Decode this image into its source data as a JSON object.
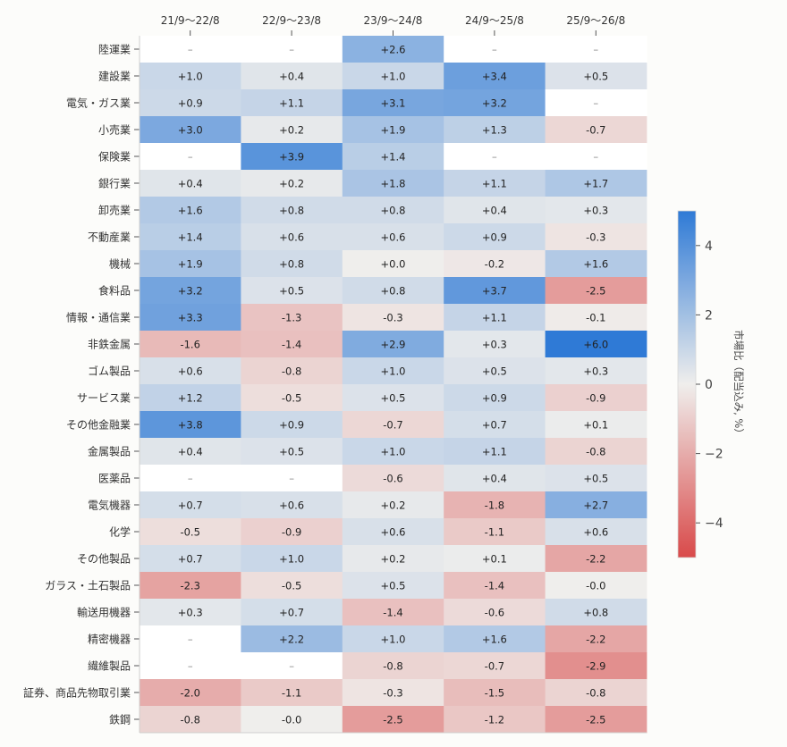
{
  "chart_data": {
    "type": "heatmap",
    "columns": [
      "21/9〜22/8",
      "22/9〜23/8",
      "23/9〜24/8",
      "24/9〜25/8",
      "25/9〜26/8"
    ],
    "rows": [
      "陸運業",
      "建設業",
      "電気・ガス業",
      "小売業",
      "保険業",
      "銀行業",
      "卸売業",
      "不動産業",
      "機械",
      "食料品",
      "情報・通信業",
      "非鉄金属",
      "ゴム製品",
      "サービス業",
      "その他金融業",
      "金属製品",
      "医薬品",
      "電気機器",
      "化学",
      "その他製品",
      "ガラス・土石製品",
      "輸送用機器",
      "精密機器",
      "繊維製品",
      "証券、商品先物取引業",
      "鉄鋼"
    ],
    "values": [
      [
        null,
        null,
        2.6,
        null,
        null
      ],
      [
        1.0,
        0.4,
        1.0,
        3.4,
        0.5
      ],
      [
        0.9,
        1.1,
        3.1,
        3.2,
        null
      ],
      [
        3.0,
        0.2,
        1.9,
        1.3,
        -0.7
      ],
      [
        null,
        3.9,
        1.4,
        null,
        null
      ],
      [
        0.4,
        0.2,
        1.8,
        1.1,
        1.7
      ],
      [
        1.6,
        0.8,
        0.8,
        0.4,
        0.3
      ],
      [
        1.4,
        0.6,
        0.6,
        0.9,
        -0.3
      ],
      [
        1.9,
        0.8,
        0.0,
        -0.2,
        1.6
      ],
      [
        3.2,
        0.5,
        0.8,
        3.7,
        -2.5
      ],
      [
        3.3,
        -1.3,
        -0.3,
        1.1,
        -0.1
      ],
      [
        -1.6,
        -1.4,
        2.9,
        0.3,
        6.0
      ],
      [
        0.6,
        -0.8,
        1.0,
        0.5,
        0.3
      ],
      [
        1.2,
        -0.5,
        0.5,
        0.9,
        -0.9
      ],
      [
        3.8,
        0.9,
        -0.7,
        0.7,
        0.1
      ],
      [
        0.4,
        0.5,
        1.0,
        1.1,
        -0.8
      ],
      [
        null,
        null,
        -0.6,
        0.4,
        0.5
      ],
      [
        0.7,
        0.6,
        0.2,
        -1.8,
        2.7
      ],
      [
        -0.5,
        -0.9,
        0.6,
        -1.1,
        0.6
      ],
      [
        0.7,
        1.0,
        0.2,
        0.1,
        -2.2
      ],
      [
        -2.3,
        -0.5,
        0.5,
        -1.4,
        -0.0
      ],
      [
        0.3,
        0.7,
        -1.4,
        -0.6,
        0.8
      ],
      [
        null,
        2.2,
        1.0,
        1.6,
        -2.2
      ],
      [
        null,
        null,
        -0.8,
        -0.7,
        -2.9
      ],
      [
        -2.0,
        -1.1,
        -0.3,
        -1.5,
        -0.8
      ],
      [
        -0.8,
        -0.0,
        -2.5,
        -1.2,
        -2.5
      ]
    ],
    "labels": [
      [
        "–",
        "–",
        "+2.6",
        "–",
        "–"
      ],
      [
        "+1.0",
        "+0.4",
        "+1.0",
        "+3.4",
        "+0.5"
      ],
      [
        "+0.9",
        "+1.1",
        "+3.1",
        "+3.2",
        "–"
      ],
      [
        "+3.0",
        "+0.2",
        "+1.9",
        "+1.3",
        "-0.7"
      ],
      [
        "–",
        "+3.9",
        "+1.4",
        "–",
        "–"
      ],
      [
        "+0.4",
        "+0.2",
        "+1.8",
        "+1.1",
        "+1.7"
      ],
      [
        "+1.6",
        "+0.8",
        "+0.8",
        "+0.4",
        "+0.3"
      ],
      [
        "+1.4",
        "+0.6",
        "+0.6",
        "+0.9",
        "-0.3"
      ],
      [
        "+1.9",
        "+0.8",
        "+0.0",
        "-0.2",
        "+1.6"
      ],
      [
        "+3.2",
        "+0.5",
        "+0.8",
        "+3.7",
        "-2.5"
      ],
      [
        "+3.3",
        "-1.3",
        "-0.3",
        "+1.1",
        "-0.1"
      ],
      [
        "-1.6",
        "-1.4",
        "+2.9",
        "+0.3",
        "+6.0"
      ],
      [
        "+0.6",
        "-0.8",
        "+1.0",
        "+0.5",
        "+0.3"
      ],
      [
        "+1.2",
        "-0.5",
        "+0.5",
        "+0.9",
        "-0.9"
      ],
      [
        "+3.8",
        "+0.9",
        "-0.7",
        "+0.7",
        "+0.1"
      ],
      [
        "+0.4",
        "+0.5",
        "+1.0",
        "+1.1",
        "-0.8"
      ],
      [
        "–",
        "–",
        "-0.6",
        "+0.4",
        "+0.5"
      ],
      [
        "+0.7",
        "+0.6",
        "+0.2",
        "-1.8",
        "+2.7"
      ],
      [
        "-0.5",
        "-0.9",
        "+0.6",
        "-1.1",
        "+0.6"
      ],
      [
        "+0.7",
        "+1.0",
        "+0.2",
        "+0.1",
        "-2.2"
      ],
      [
        "-2.3",
        "-0.5",
        "+0.5",
        "-1.4",
        "-0.0"
      ],
      [
        "+0.3",
        "+0.7",
        "-1.4",
        "-0.6",
        "+0.8"
      ],
      [
        "–",
        "+2.2",
        "+1.0",
        "+1.6",
        "-2.2"
      ],
      [
        "–",
        "–",
        "-0.8",
        "-0.7",
        "-2.9"
      ],
      [
        "-2.0",
        "-1.1",
        "-0.3",
        "-1.5",
        "-0.8"
      ],
      [
        "-0.8",
        "-0.0",
        "-2.5",
        "-1.2",
        "-2.5"
      ]
    ],
    "colorbar": {
      "label": "市場比（配当込み, %）",
      "range": [
        -5,
        5
      ],
      "ticks": [
        4,
        2,
        0,
        -2,
        -4
      ],
      "tick_labels": [
        "4",
        "2",
        "0",
        "−2",
        "−4"
      ],
      "low_color": "#d94a4a",
      "mid_color": "#efeeec",
      "high_color": "#2f7ad6",
      "empty_cell_color": "#ffffff"
    }
  }
}
